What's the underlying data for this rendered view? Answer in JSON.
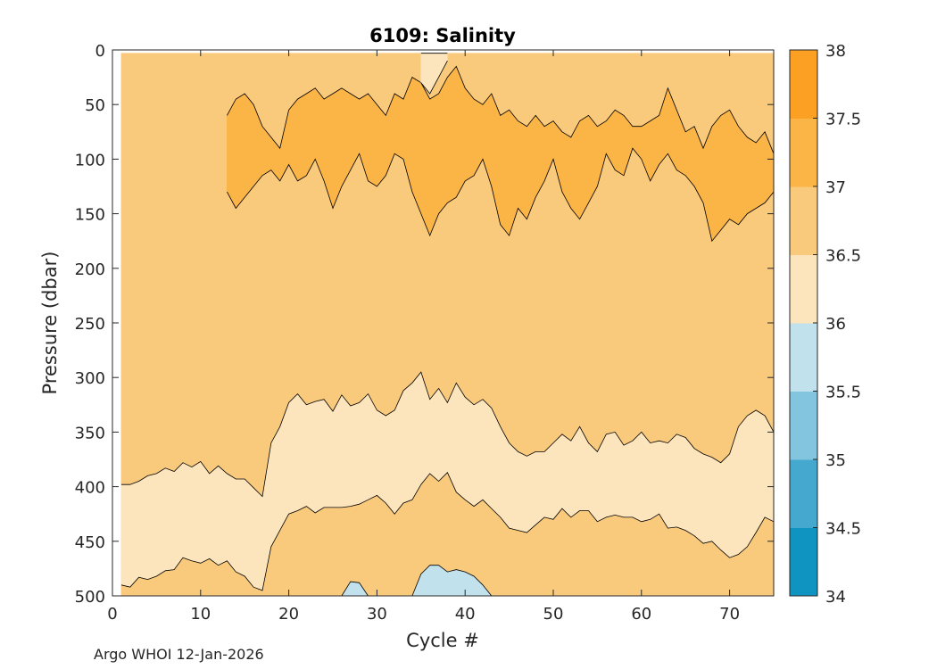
{
  "chart_data": {
    "type": "contour",
    "title": "6109:  Salinity",
    "xlabel": "Cycle #",
    "ylabel": "Pressure (dbar)",
    "xlim": [
      0,
      75
    ],
    "ylim": [
      0,
      500
    ],
    "y_reversed": true,
    "x_ticks": [
      0,
      10,
      20,
      30,
      40,
      50,
      60,
      70
    ],
    "y_ticks": [
      0,
      50,
      100,
      150,
      200,
      250,
      300,
      350,
      400,
      450,
      500
    ],
    "data_x_start": 1,
    "colorbar": {
      "levels": [
        34,
        34.5,
        35,
        35.5,
        36,
        36.5,
        37,
        37.5,
        38
      ],
      "labels": [
        "34",
        "34.5",
        "35",
        "35.5",
        "36",
        "36.5",
        "37",
        "37.5",
        "38"
      ],
      "colors": [
        "#0f93c0",
        "#45a8cf",
        "#83c4df",
        "#c1e1ec",
        "#fce5bd",
        "#f9c97c",
        "#fbb446",
        "#fca024"
      ]
    },
    "contour_bands": [
      {
        "name": "band-36.5-37",
        "level_min": 36.5,
        "level_max": 37,
        "color": "#f9c97c",
        "x": [
          1,
          75
        ],
        "upper_depth": [
          3,
          3
        ],
        "lower_depth": [
          500,
          500
        ]
      },
      {
        "name": "band-37-37.5",
        "level_min": 37,
        "level_max": 37.5,
        "color": "#fbb446",
        "x": [
          13,
          14,
          15,
          16,
          17,
          18,
          19,
          20,
          21,
          22,
          23,
          24,
          25,
          26,
          27,
          28,
          29,
          30,
          31,
          32,
          33,
          34,
          35,
          36,
          37,
          38,
          39,
          40,
          41,
          42,
          43,
          44,
          45,
          46,
          47,
          48,
          49,
          50,
          51,
          52,
          53,
          54,
          55,
          56,
          57,
          58,
          59,
          60,
          61,
          62,
          63,
          64,
          65,
          66,
          67,
          68,
          69,
          70,
          71,
          72,
          73,
          74,
          75
        ],
        "upper_depth": [
          60,
          45,
          40,
          50,
          70,
          80,
          90,
          55,
          45,
          40,
          35,
          45,
          40,
          35,
          40,
          45,
          40,
          50,
          60,
          40,
          45,
          25,
          30,
          45,
          40,
          25,
          15,
          35,
          45,
          50,
          40,
          60,
          55,
          65,
          70,
          60,
          70,
          65,
          75,
          80,
          65,
          60,
          70,
          65,
          55,
          60,
          70,
          70,
          65,
          60,
          35,
          55,
          75,
          70,
          90,
          70,
          60,
          55,
          70,
          80,
          85,
          75,
          95
        ],
        "lower_depth": [
          130,
          145,
          135,
          125,
          115,
          110,
          120,
          105,
          120,
          115,
          100,
          120,
          145,
          125,
          110,
          95,
          120,
          125,
          115,
          95,
          100,
          130,
          150,
          170,
          150,
          140,
          135,
          120,
          115,
          100,
          125,
          160,
          170,
          145,
          155,
          135,
          120,
          100,
          130,
          145,
          155,
          140,
          125,
          95,
          110,
          115,
          90,
          100,
          120,
          105,
          95,
          110,
          115,
          125,
          140,
          175,
          165,
          155,
          160,
          150,
          145,
          140,
          130
        ]
      },
      {
        "name": "band-36-36.5",
        "level_min": 36,
        "level_max": 36.5,
        "color": "#fce5bd",
        "x": [
          1,
          2,
          3,
          4,
          5,
          6,
          7,
          8,
          9,
          10,
          11,
          12,
          13,
          14,
          15,
          16,
          17,
          18,
          19,
          20,
          21,
          22,
          23,
          24,
          25,
          26,
          27,
          28,
          29,
          30,
          31,
          32,
          33,
          34,
          35,
          36,
          37,
          38,
          39,
          40,
          41,
          42,
          43,
          44,
          45,
          46,
          47,
          48,
          49,
          50,
          51,
          52,
          53,
          54,
          55,
          56,
          57,
          58,
          59,
          60,
          61,
          62,
          63,
          64,
          65,
          66,
          67,
          68,
          69,
          70,
          71,
          72,
          73,
          74,
          75
        ],
        "upper_depth": [
          398,
          398,
          395,
          390,
          388,
          383,
          386,
          378,
          382,
          377,
          388,
          381,
          388,
          393,
          393,
          401,
          409,
          360,
          345,
          323,
          315,
          325,
          322,
          320,
          331,
          316,
          326,
          323,
          315,
          330,
          335,
          330,
          312,
          305,
          295,
          320,
          310,
          323,
          305,
          318,
          325,
          320,
          328,
          345,
          360,
          368,
          372,
          368,
          368,
          360,
          352,
          358,
          345,
          360,
          368,
          352,
          350,
          362,
          358,
          350,
          360,
          358,
          360,
          352,
          355,
          365,
          370,
          373,
          378,
          370,
          345,
          335,
          330,
          335,
          350
        ],
        "lower_depth": [
          490,
          492,
          483,
          485,
          482,
          477,
          476,
          465,
          468,
          470,
          466,
          472,
          468,
          478,
          482,
          492,
          495,
          455,
          440,
          425,
          422,
          418,
          424,
          419,
          419,
          419,
          418,
          416,
          412,
          408,
          415,
          425,
          415,
          412,
          398,
          388,
          395,
          387,
          405,
          412,
          418,
          412,
          420,
          428,
          438,
          440,
          442,
          435,
          428,
          430,
          420,
          428,
          422,
          422,
          432,
          428,
          426,
          428,
          428,
          432,
          430,
          425,
          438,
          437,
          440,
          445,
          452,
          450,
          458,
          465,
          462,
          455,
          442,
          428,
          432
        ]
      },
      {
        "name": "band-35.5-36-a",
        "level_min": 35.5,
        "level_max": 36,
        "color": "#c1e1ec",
        "x": [
          26,
          27,
          28,
          29
        ],
        "upper_depth": [
          500,
          487,
          488,
          500
        ],
        "lower_depth": [
          500,
          500,
          500,
          500
        ]
      },
      {
        "name": "band-35.5-36-b",
        "level_min": 35.5,
        "level_max": 36,
        "color": "#c1e1ec",
        "x": [
          34,
          35,
          36,
          37,
          38,
          39,
          40,
          41,
          42,
          43
        ],
        "upper_depth": [
          500,
          480,
          472,
          472,
          478,
          476,
          478,
          482,
          490,
          500
        ],
        "lower_depth": [
          500,
          500,
          500,
          500,
          500,
          500,
          500,
          500,
          500,
          500
        ]
      },
      {
        "name": "band-36-36.5-surface",
        "level_min": 36,
        "level_max": 36.5,
        "color": "#fce5bd",
        "x": [
          35,
          36,
          37,
          38
        ],
        "upper_depth": [
          3,
          3,
          3,
          3
        ],
        "lower_depth": [
          30,
          40,
          25,
          10
        ]
      }
    ]
  },
  "footer": {
    "credit": "Argo WHOI 12-Jan-2026"
  }
}
